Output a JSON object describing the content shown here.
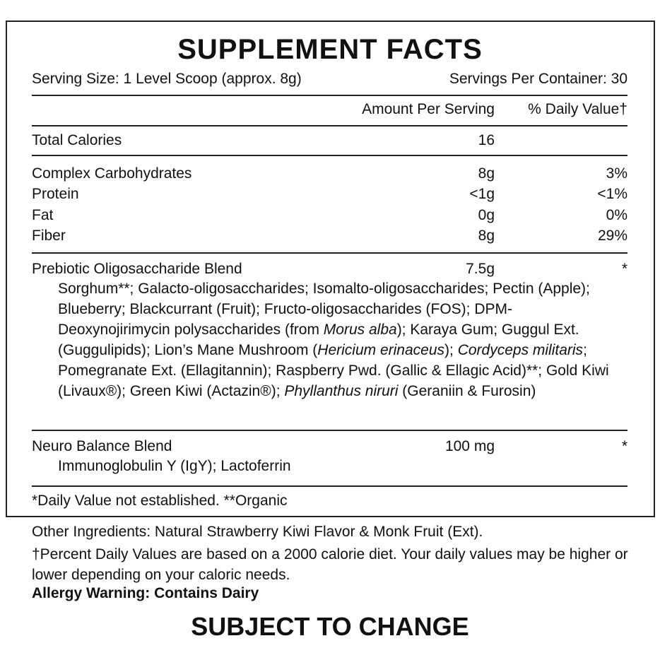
{
  "title": "SUPPLEMENT FACTS",
  "serving_size": "Serving Size: 1 Level Scoop (approx. 8g)",
  "servings_per_container": "Servings Per Container: 30",
  "header": {
    "amount": "Amount Per Serving",
    "daily_value": "% Daily Value†"
  },
  "rows": [
    {
      "name": "Total Calories",
      "amount": "16"
    },
    {
      "name": "Complex Carbohydrates",
      "amount": "8g",
      "daily_value": "3%"
    },
    {
      "name": "Protein",
      "amount": "<1g",
      "daily_value": "<1%"
    },
    {
      "name": "Fat",
      "amount": "0g",
      "daily_value": "0%"
    },
    {
      "name": "Fiber",
      "amount": "8g",
      "daily_value": "29%"
    }
  ],
  "blends": [
    {
      "name": "Prebiotic Oligosaccharide Blend",
      "amount": "7.5g",
      "daily_value": "*",
      "ingredients": [
        {
          "text": "Sorghum**; Galacto-oligosaccharides; Isomalto-oligosaccharides; Pectin (Apple); Blueberry; Blackcurrant (Fruit); Fructo-oligosaccharides (FOS); DPM-Deoxynojirimycin polysaccharides (from "
        },
        {
          "text": "Morus alba",
          "italic": true
        },
        {
          "text": "); Karaya Gum; Guggul Ext. (Guggulipids); Lion’s Mane Mushroom ("
        },
        {
          "text": "Hericium erinaceus",
          "italic": true
        },
        {
          "text": "); "
        },
        {
          "text": "Cordyceps militaris",
          "italic": true
        },
        {
          "text": "; Pomegranate Ext. (Ellagitannin); Raspberry Pwd. (Gallic & Ellagic Acid)**; Gold Kiwi (Livaux®); Green Kiwi (Actazin®); "
        },
        {
          "text": "Phyllanthus niruri",
          "italic": true
        },
        {
          "text": " (Geraniin & Furosin)"
        }
      ]
    },
    {
      "name": "Neuro Balance Blend",
      "amount": "100 mg",
      "daily_value": "*",
      "ingredients": [
        {
          "text": "Immunoglobulin Y (IgY); Lactoferrin"
        }
      ]
    }
  ],
  "footnote": "*Daily Value not established. **Organic",
  "other_ingredients": "Other Ingredients: Natural Strawberry Kiwi Flavor & Monk Fruit (Ext).",
  "daily_value_note": "†Percent Daily Values are based on a 2000 calorie diet. Your daily values may be higher or lower depending on your caloric needs.",
  "allergy_warning": "Allergy Warning: Contains Dairy",
  "notice": "SUBJECT TO CHANGE"
}
